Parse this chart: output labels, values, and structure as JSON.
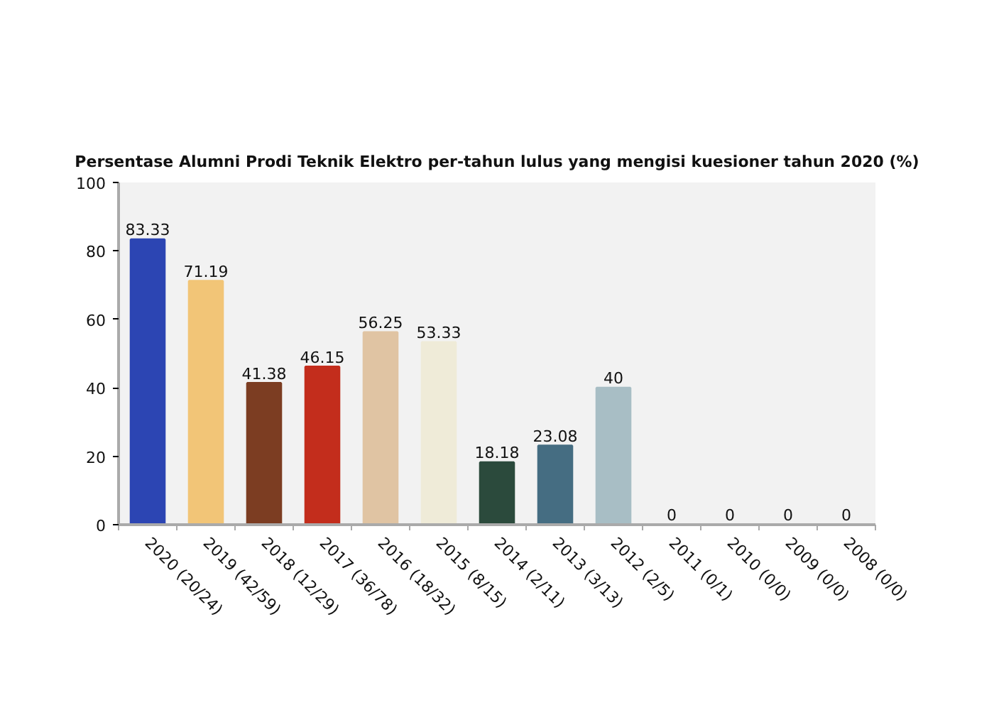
{
  "chart_data": {
    "type": "bar",
    "title": "Persentase Alumni Prodi Teknik Elektro per-tahun lulus yang mengisi kuesioner tahun 2020 (%)",
    "categories": [
      "2020 (20/24)",
      "2019 (42/59)",
      "2018 (12/29)",
      "2017 (36/78)",
      "2016 (18/32)",
      "2015 (8/15)",
      "2014 (2/11)",
      "2013 (3/13)",
      "2012 (2/5)",
      "2011 (0/1)",
      "2010 (0/0)",
      "2009 (0/0)",
      "2008 (0/0)"
    ],
    "values": [
      83.33,
      71.19,
      41.38,
      46.15,
      56.25,
      53.33,
      18.18,
      23.08,
      40,
      0,
      0,
      0,
      0
    ],
    "colors": [
      "#2c45b3",
      "#f2c577",
      "#7c3d22",
      "#c32d1c",
      "#e0c4a3",
      "#efebd8",
      "#2b4a3c",
      "#456d82",
      "#a8bec5",
      "#b3bca5",
      "#1f3a9a",
      "#c09a5c",
      "#6b2e1a"
    ],
    "ylim": [
      0,
      100
    ],
    "yticks": [
      0,
      20,
      40,
      60,
      80,
      100
    ],
    "data_labels": true,
    "grid": false
  }
}
